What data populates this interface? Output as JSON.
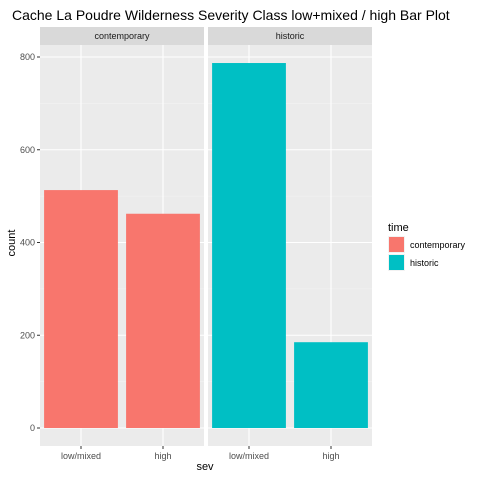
{
  "chart_data": {
    "type": "bar",
    "title": "Cache La Poudre Wilderness Severity Class low+mixed / high Bar Plot",
    "xlabel": "sev",
    "ylabel": "count",
    "ylim": [
      0,
      820
    ],
    "yticks": [
      0,
      200,
      400,
      600,
      800
    ],
    "categories": [
      "low/mixed",
      "high"
    ],
    "facets": [
      {
        "name": "contemporary",
        "values": [
          513,
          462
        ],
        "series": "contemporary"
      },
      {
        "name": "historic",
        "values": [
          787,
          185
        ],
        "series": "historic"
      }
    ],
    "series": [
      {
        "name": "contemporary",
        "color": "#F8766D"
      },
      {
        "name": "historic",
        "color": "#00BFC4"
      }
    ],
    "legend": {
      "title": "time",
      "position": "right"
    },
    "grid": true,
    "panel_background": "#EBEBEB",
    "strip_background": "#D9D9D9"
  }
}
